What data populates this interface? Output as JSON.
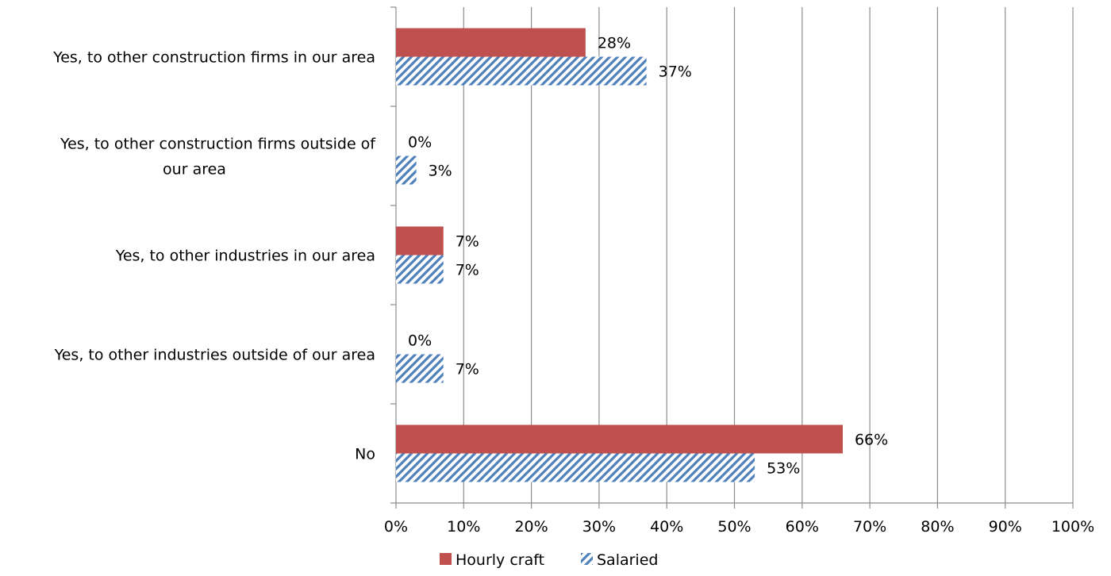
{
  "chart_data": {
    "type": "bar",
    "orientation": "horizontal",
    "categories": [
      [
        "Yes, to other construction firms in our area"
      ],
      [
        "Yes, to other construction firms outside of",
        "our area"
      ],
      [
        "Yes, to other industries in our area"
      ],
      [
        "Yes, to other industries outside of our area"
      ],
      [
        "No"
      ]
    ],
    "series": [
      {
        "name": "Hourly craft",
        "values": [
          28,
          0,
          7,
          0,
          66
        ],
        "labels": [
          "28%",
          "0%",
          "7%",
          "0%",
          "66%"
        ],
        "color": "#c0504d",
        "pattern": "solid"
      },
      {
        "name": "Salaried",
        "values": [
          37,
          3,
          7,
          7,
          53
        ],
        "labels": [
          "37%",
          "3%",
          "7%",
          "7%",
          "53%"
        ],
        "color": "#4f81bd",
        "pattern": "diagonal-hatch"
      }
    ],
    "xlim": [
      0,
      100
    ],
    "xticks": [
      0,
      10,
      20,
      30,
      40,
      50,
      60,
      70,
      80,
      90,
      100
    ],
    "xtick_labels": [
      "0%",
      "10%",
      "20%",
      "30%",
      "40%",
      "50%",
      "60%",
      "70%",
      "80%",
      "90%",
      "100%"
    ],
    "grid": "vertical",
    "legend_position": "bottom",
    "title": "",
    "xlabel": "",
    "ylabel": ""
  }
}
